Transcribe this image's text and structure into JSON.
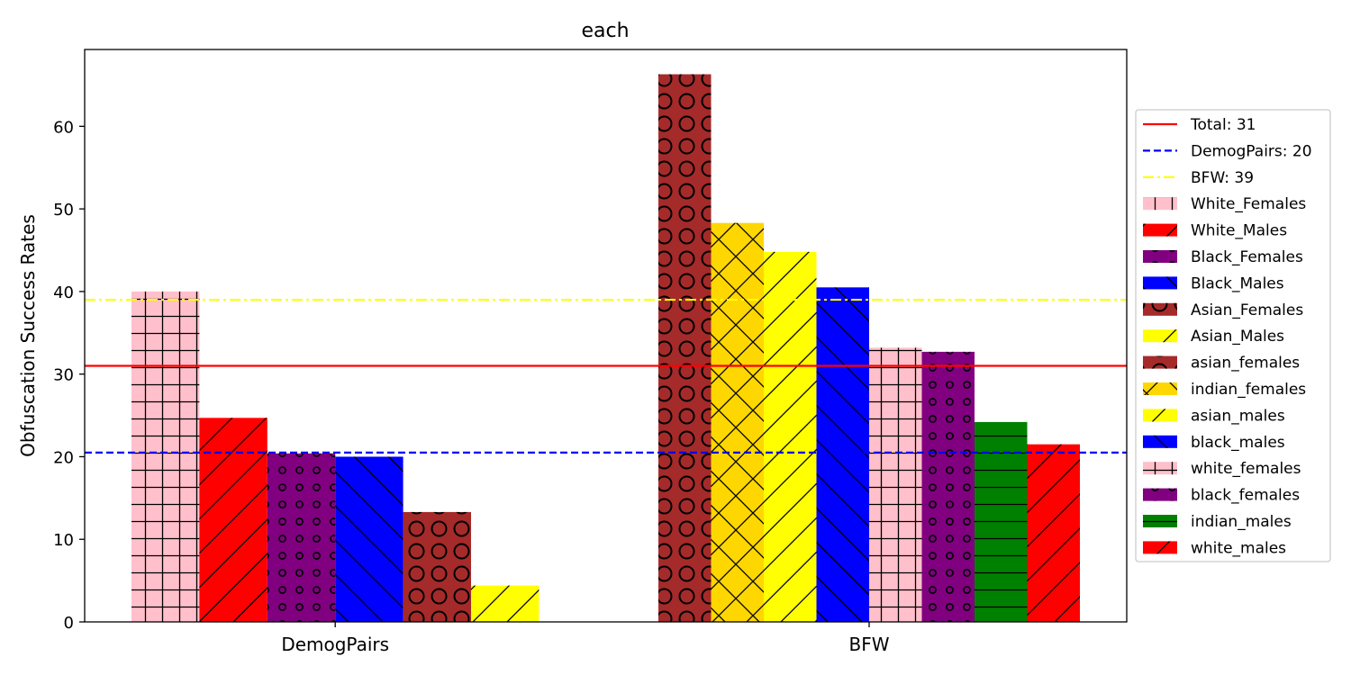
{
  "chart_data": {
    "type": "bar",
    "title": "each",
    "xlabel": "",
    "ylabel": "Obfuscation Success Rates",
    "ylim": [
      0,
      69.3
    ],
    "yticks": [
      0,
      10,
      20,
      30,
      40,
      50,
      60
    ],
    "legend_position": "center right",
    "groups": [
      {
        "label": "DemogPairs",
        "bars": [
          {
            "series": "White_Females",
            "value": 40.0,
            "color": "#ffc0cb",
            "hatch": "grid"
          },
          {
            "series": "White_Males",
            "value": 24.7,
            "color": "#ff0000",
            "hatch": "slash"
          },
          {
            "series": "Black_Females",
            "value": 20.4,
            "color": "#800080",
            "hatch": "small-circles"
          },
          {
            "series": "Black_Males",
            "value": 20.0,
            "color": "#0000ff",
            "hatch": "backslash"
          },
          {
            "series": "Asian_Females",
            "value": 13.3,
            "color": "#a52a2a",
            "hatch": "big-circles"
          },
          {
            "series": "Asian_Males",
            "value": 4.4,
            "color": "#ffff00",
            "hatch": "slash"
          }
        ]
      },
      {
        "label": "BFW",
        "bars": [
          {
            "series": "asian_females",
            "value": 66.3,
            "color": "#a52a2a",
            "hatch": "big-circles"
          },
          {
            "series": "indian_females",
            "value": 48.3,
            "color": "#ffd700",
            "hatch": "cross"
          },
          {
            "series": "asian_males",
            "value": 44.8,
            "color": "#ffff00",
            "hatch": "slash"
          },
          {
            "series": "black_males",
            "value": 40.5,
            "color": "#0000ff",
            "hatch": "backslash"
          },
          {
            "series": "white_females",
            "value": 33.2,
            "color": "#ffc0cb",
            "hatch": "grid"
          },
          {
            "series": "black_females",
            "value": 32.7,
            "color": "#800080",
            "hatch": "small-circles"
          },
          {
            "series": "indian_males",
            "value": 24.2,
            "color": "#008000",
            "hatch": "horizontal"
          },
          {
            "series": "white_males",
            "value": 21.5,
            "color": "#ff0000",
            "hatch": "slash"
          }
        ]
      }
    ],
    "reference_lines": [
      {
        "label": "Total: 31",
        "value": 31.0,
        "color": "#ff0000",
        "style": "solid"
      },
      {
        "label": "DemogPairs: 20",
        "value": 20.5,
        "color": "#0000ff",
        "style": "dashed"
      },
      {
        "label": "BFW: 39",
        "value": 39.0,
        "color": "#ffff00",
        "style": "dashdot"
      }
    ],
    "legend": [
      {
        "label": "Total: 31",
        "kind": "line",
        "color": "#ff0000",
        "style": "solid"
      },
      {
        "label": "DemogPairs: 20",
        "kind": "line",
        "color": "#0000ff",
        "style": "dashed"
      },
      {
        "label": "BFW: 39",
        "kind": "line",
        "color": "#ffff00",
        "style": "dashdot"
      },
      {
        "label": "White_Females",
        "kind": "patch",
        "color": "#ffc0cb",
        "hatch": "grid"
      },
      {
        "label": "White_Males",
        "kind": "patch",
        "color": "#ff0000",
        "hatch": "slash"
      },
      {
        "label": "Black_Females",
        "kind": "patch",
        "color": "#800080",
        "hatch": "small-circles"
      },
      {
        "label": "Black_Males",
        "kind": "patch",
        "color": "#0000ff",
        "hatch": "backslash"
      },
      {
        "label": "Asian_Females",
        "kind": "patch",
        "color": "#a52a2a",
        "hatch": "big-circles"
      },
      {
        "label": "Asian_Males",
        "kind": "patch",
        "color": "#ffff00",
        "hatch": "slash"
      },
      {
        "label": "asian_females",
        "kind": "patch",
        "color": "#a52a2a",
        "hatch": "big-circles"
      },
      {
        "label": "indian_females",
        "kind": "patch",
        "color": "#ffd700",
        "hatch": "cross"
      },
      {
        "label": "asian_males",
        "kind": "patch",
        "color": "#ffff00",
        "hatch": "slash"
      },
      {
        "label": "black_males",
        "kind": "patch",
        "color": "#0000ff",
        "hatch": "backslash"
      },
      {
        "label": "white_females",
        "kind": "patch",
        "color": "#ffc0cb",
        "hatch": "grid"
      },
      {
        "label": "black_females",
        "kind": "patch",
        "color": "#800080",
        "hatch": "small-circles"
      },
      {
        "label": "indian_males",
        "kind": "patch",
        "color": "#008000",
        "hatch": "horizontal"
      },
      {
        "label": "white_males",
        "kind": "patch",
        "color": "#ff0000",
        "hatch": "slash"
      }
    ]
  }
}
